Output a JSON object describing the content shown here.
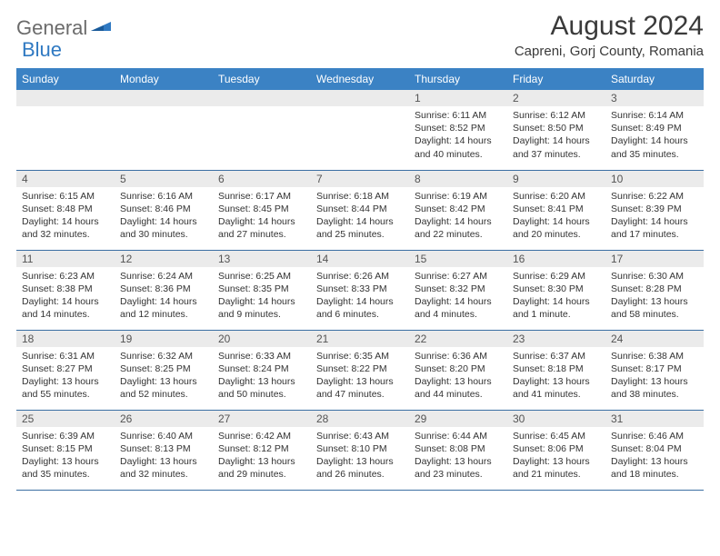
{
  "logo": {
    "general": "General",
    "blue": "Blue"
  },
  "title": "August 2024",
  "location": "Capreni, Gorj County, Romania",
  "colors": {
    "header_bg": "#3b82c4",
    "header_text": "#ffffff",
    "daynum_bg": "#ebebeb",
    "cell_border": "#3b6fa3",
    "logo_gray": "#6b6b6b",
    "logo_blue": "#2f79c2",
    "body_text": "#333333",
    "background": "#ffffff"
  },
  "weekdays": [
    "Sunday",
    "Monday",
    "Tuesday",
    "Wednesday",
    "Thursday",
    "Friday",
    "Saturday"
  ],
  "weeks": [
    [
      null,
      null,
      null,
      null,
      {
        "n": "1",
        "sr": "6:11 AM",
        "ss": "8:52 PM",
        "dl": "14 hours and 40 minutes."
      },
      {
        "n": "2",
        "sr": "6:12 AM",
        "ss": "8:50 PM",
        "dl": "14 hours and 37 minutes."
      },
      {
        "n": "3",
        "sr": "6:14 AM",
        "ss": "8:49 PM",
        "dl": "14 hours and 35 minutes."
      }
    ],
    [
      {
        "n": "4",
        "sr": "6:15 AM",
        "ss": "8:48 PM",
        "dl": "14 hours and 32 minutes."
      },
      {
        "n": "5",
        "sr": "6:16 AM",
        "ss": "8:46 PM",
        "dl": "14 hours and 30 minutes."
      },
      {
        "n": "6",
        "sr": "6:17 AM",
        "ss": "8:45 PM",
        "dl": "14 hours and 27 minutes."
      },
      {
        "n": "7",
        "sr": "6:18 AM",
        "ss": "8:44 PM",
        "dl": "14 hours and 25 minutes."
      },
      {
        "n": "8",
        "sr": "6:19 AM",
        "ss": "8:42 PM",
        "dl": "14 hours and 22 minutes."
      },
      {
        "n": "9",
        "sr": "6:20 AM",
        "ss": "8:41 PM",
        "dl": "14 hours and 20 minutes."
      },
      {
        "n": "10",
        "sr": "6:22 AM",
        "ss": "8:39 PM",
        "dl": "14 hours and 17 minutes."
      }
    ],
    [
      {
        "n": "11",
        "sr": "6:23 AM",
        "ss": "8:38 PM",
        "dl": "14 hours and 14 minutes."
      },
      {
        "n": "12",
        "sr": "6:24 AM",
        "ss": "8:36 PM",
        "dl": "14 hours and 12 minutes."
      },
      {
        "n": "13",
        "sr": "6:25 AM",
        "ss": "8:35 PM",
        "dl": "14 hours and 9 minutes."
      },
      {
        "n": "14",
        "sr": "6:26 AM",
        "ss": "8:33 PM",
        "dl": "14 hours and 6 minutes."
      },
      {
        "n": "15",
        "sr": "6:27 AM",
        "ss": "8:32 PM",
        "dl": "14 hours and 4 minutes."
      },
      {
        "n": "16",
        "sr": "6:29 AM",
        "ss": "8:30 PM",
        "dl": "14 hours and 1 minute."
      },
      {
        "n": "17",
        "sr": "6:30 AM",
        "ss": "8:28 PM",
        "dl": "13 hours and 58 minutes."
      }
    ],
    [
      {
        "n": "18",
        "sr": "6:31 AM",
        "ss": "8:27 PM",
        "dl": "13 hours and 55 minutes."
      },
      {
        "n": "19",
        "sr": "6:32 AM",
        "ss": "8:25 PM",
        "dl": "13 hours and 52 minutes."
      },
      {
        "n": "20",
        "sr": "6:33 AM",
        "ss": "8:24 PM",
        "dl": "13 hours and 50 minutes."
      },
      {
        "n": "21",
        "sr": "6:35 AM",
        "ss": "8:22 PM",
        "dl": "13 hours and 47 minutes."
      },
      {
        "n": "22",
        "sr": "6:36 AM",
        "ss": "8:20 PM",
        "dl": "13 hours and 44 minutes."
      },
      {
        "n": "23",
        "sr": "6:37 AM",
        "ss": "8:18 PM",
        "dl": "13 hours and 41 minutes."
      },
      {
        "n": "24",
        "sr": "6:38 AM",
        "ss": "8:17 PM",
        "dl": "13 hours and 38 minutes."
      }
    ],
    [
      {
        "n": "25",
        "sr": "6:39 AM",
        "ss": "8:15 PM",
        "dl": "13 hours and 35 minutes."
      },
      {
        "n": "26",
        "sr": "6:40 AM",
        "ss": "8:13 PM",
        "dl": "13 hours and 32 minutes."
      },
      {
        "n": "27",
        "sr": "6:42 AM",
        "ss": "8:12 PM",
        "dl": "13 hours and 29 minutes."
      },
      {
        "n": "28",
        "sr": "6:43 AM",
        "ss": "8:10 PM",
        "dl": "13 hours and 26 minutes."
      },
      {
        "n": "29",
        "sr": "6:44 AM",
        "ss": "8:08 PM",
        "dl": "13 hours and 23 minutes."
      },
      {
        "n": "30",
        "sr": "6:45 AM",
        "ss": "8:06 PM",
        "dl": "13 hours and 21 minutes."
      },
      {
        "n": "31",
        "sr": "6:46 AM",
        "ss": "8:04 PM",
        "dl": "13 hours and 18 minutes."
      }
    ]
  ],
  "labels": {
    "sunrise": "Sunrise: ",
    "sunset": "Sunset: ",
    "daylight": "Daylight: "
  }
}
